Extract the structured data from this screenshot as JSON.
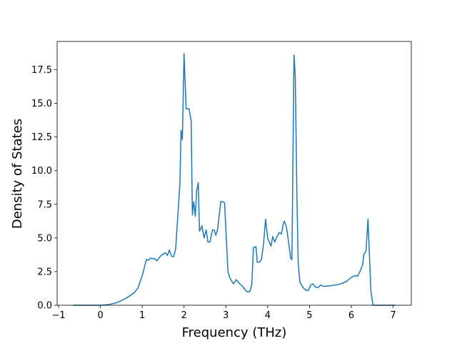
{
  "chart_data": {
    "type": "line",
    "xlabel": "Frequency (THz)",
    "ylabel": "Density of States",
    "x": [
      -0.65,
      0,
      0.2,
      0.4,
      0.6,
      0.8,
      0.9,
      1.0,
      1.1,
      1.15,
      1.2,
      1.3,
      1.35,
      1.45,
      1.55,
      1.6,
      1.65,
      1.7,
      1.75,
      1.8,
      1.9,
      1.93,
      1.96,
      2.0,
      2.05,
      2.12,
      2.17,
      2.2,
      2.23,
      2.27,
      2.3,
      2.34,
      2.37,
      2.43,
      2.48,
      2.53,
      2.57,
      2.62,
      2.68,
      2.72,
      2.76,
      2.8,
      2.88,
      2.93,
      2.97,
      3.05,
      3.1,
      3.18,
      3.25,
      3.3,
      3.4,
      3.5,
      3.57,
      3.62,
      3.66,
      3.72,
      3.75,
      3.8,
      3.85,
      3.9,
      3.95,
      4.0,
      4.05,
      4.08,
      4.12,
      4.17,
      4.22,
      4.28,
      4.33,
      4.37,
      4.4,
      4.45,
      4.5,
      4.55,
      4.58,
      4.63,
      4.66,
      4.7,
      4.73,
      4.77,
      4.85,
      4.92,
      4.97,
      5.03,
      5.08,
      5.15,
      5.2,
      5.27,
      5.33,
      5.5,
      5.7,
      5.8,
      5.9,
      5.97,
      6.05,
      6.1,
      6.15,
      6.22,
      6.27,
      6.3,
      6.35,
      6.4,
      6.43,
      6.47,
      6.52,
      7.05
    ],
    "series": [
      {
        "name": "DOS",
        "color": "#1f77b4",
        "values": [
          0,
          0,
          0.05,
          0.2,
          0.5,
          0.9,
          1.3,
          2.2,
          3.4,
          3.35,
          3.5,
          3.45,
          3.3,
          3.7,
          3.9,
          3.7,
          4.1,
          3.65,
          3.6,
          4.2,
          9,
          13,
          12.3,
          18.7,
          14.6,
          14.6,
          13.7,
          6.7,
          7.7,
          6.6,
          8.5,
          9.1,
          5.5,
          5.9,
          5,
          5.6,
          4.7,
          4.7,
          5.6,
          5.6,
          5.2,
          5.6,
          7.7,
          7.7,
          7.6,
          2.5,
          2,
          1.6,
          1.9,
          1.7,
          1.4,
          1.0,
          1.0,
          1.5,
          4.3,
          4.35,
          3.2,
          3.2,
          3.4,
          4.5,
          6.4,
          5,
          4.6,
          4.4,
          5.1,
          4.7,
          5.1,
          5.4,
          5.3,
          6,
          6.25,
          5.8,
          4.7,
          3.5,
          3.4,
          18.6,
          17,
          8,
          3.2,
          1.7,
          1.3,
          1.1,
          1.1,
          1.5,
          1.6,
          1.35,
          1.3,
          1.5,
          1.4,
          1.45,
          1.55,
          1.65,
          1.8,
          2.0,
          2.15,
          2.2,
          2.15,
          2.6,
          3.0,
          3.8,
          4.0,
          6.4,
          4.0,
          1.0,
          0,
          0
        ]
      }
    ],
    "xlim": [
      -1.035,
      7.435
    ],
    "xticks": [
      {
        "value": -1,
        "label": "−1"
      },
      0,
      1,
      2,
      3,
      4,
      5,
      6,
      7
    ],
    "ylim": [
      0,
      19.6
    ],
    "yticks": [
      {
        "value": 0,
        "label": "0.0"
      },
      {
        "value": 2.5,
        "label": "2.5"
      },
      {
        "value": 5,
        "label": "5.0"
      },
      {
        "value": 7.5,
        "label": "7.5"
      },
      {
        "value": 10,
        "label": "10.0"
      },
      {
        "value": 12.5,
        "label": "12.5"
      },
      {
        "value": 15,
        "label": "15.0"
      },
      {
        "value": 17.5,
        "label": "17.5"
      }
    ]
  }
}
